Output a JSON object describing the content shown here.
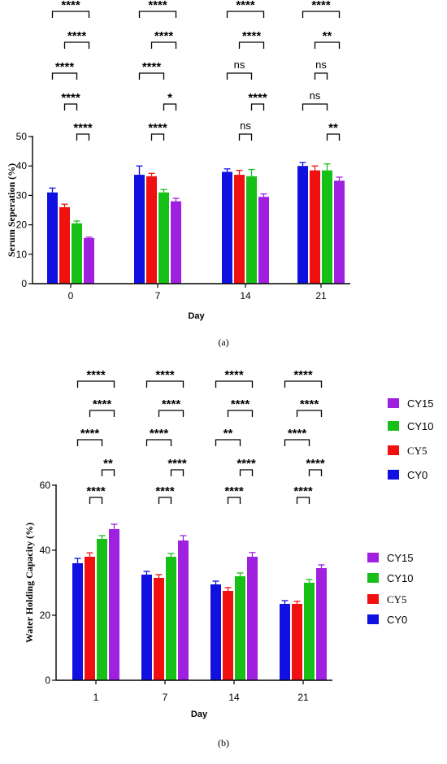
{
  "colors": {
    "CY0": "#1010e0",
    "CY5": "#f01010",
    "CY10": "#16c016",
    "CY15": "#a020e0"
  },
  "legend_order": [
    "CY15",
    "CY10",
    "CY5",
    "CY0"
  ],
  "chart_data": [
    {
      "type": "bar",
      "caption": "(a)",
      "ylabel": "Serum Seperation (%)",
      "xlabel": "Day",
      "ylim": [
        0,
        50
      ],
      "yticks": [
        0,
        10,
        20,
        30,
        40,
        50
      ],
      "grid": false,
      "legend_position": "right",
      "categories": [
        "0",
        "7",
        "14",
        "21"
      ],
      "series": [
        {
          "name": "CY0",
          "values": [
            31,
            37,
            38,
            40
          ],
          "errors": [
            1.5,
            3.0,
            1.0,
            1.2
          ]
        },
        {
          "name": "CY5",
          "values": [
            26,
            36.5,
            37,
            38.5
          ],
          "errors": [
            1.0,
            1.0,
            1.5,
            1.5
          ]
        },
        {
          "name": "CY10",
          "values": [
            20.5,
            31,
            36.5,
            38.5
          ],
          "errors": [
            0.8,
            1.0,
            2.3,
            2.2
          ]
        },
        {
          "name": "CY15",
          "values": [
            15.5,
            28,
            29.5,
            35
          ],
          "errors": [
            0.3,
            1.0,
            1.0,
            1.2
          ]
        }
      ],
      "comparisons": [
        [
          {
            "from": 0,
            "to": 3,
            "label": "****"
          },
          {
            "from": 1,
            "to": 3,
            "label": "****"
          },
          {
            "from": 0,
            "to": 2,
            "label": "****"
          },
          {
            "from": 1,
            "to": 2,
            "label": "****"
          },
          {
            "from": 2,
            "to": 3,
            "label": "****"
          }
        ],
        [
          {
            "from": 0,
            "to": 3,
            "label": "****"
          },
          {
            "from": 1,
            "to": 3,
            "label": "****"
          },
          {
            "from": 0,
            "to": 2,
            "label": "****"
          },
          {
            "from": 2,
            "to": 3,
            "label": "*"
          },
          {
            "from": 1,
            "to": 2,
            "label": "****"
          }
        ],
        [
          {
            "from": 0,
            "to": 3,
            "label": "****"
          },
          {
            "from": 1,
            "to": 3,
            "label": "****"
          },
          {
            "from": 0,
            "to": 2,
            "label": "ns"
          },
          {
            "from": 2,
            "to": 3,
            "label": "****"
          },
          {
            "from": 1,
            "to": 2,
            "label": "ns"
          }
        ],
        [
          {
            "from": 0,
            "to": 3,
            "label": "****"
          },
          {
            "from": 1,
            "to": 3,
            "label": "**"
          },
          {
            "from": 1,
            "to": 2,
            "label": "ns"
          },
          {
            "from": 0,
            "to": 2,
            "label": "ns"
          },
          {
            "from": 2,
            "to": 3,
            "label": "**"
          }
        ]
      ]
    },
    {
      "type": "bar",
      "caption": "(b)",
      "ylabel": "Water Holding Capacity (%)",
      "xlabel": "Day",
      "ylim": [
        0,
        60
      ],
      "yticks": [
        0,
        20,
        40,
        60
      ],
      "grid": false,
      "legend_position": "right",
      "categories": [
        "1",
        "7",
        "14",
        "21"
      ],
      "series": [
        {
          "name": "CY0",
          "values": [
            36,
            32.5,
            29.5,
            23.5
          ],
          "errors": [
            1.5,
            1.0,
            1.0,
            1.0
          ]
        },
        {
          "name": "CY5",
          "values": [
            38,
            31.5,
            27.5,
            23.5
          ],
          "errors": [
            1.2,
            1.0,
            1.0,
            0.8
          ]
        },
        {
          "name": "CY10",
          "values": [
            43.5,
            38,
            32,
            30
          ],
          "errors": [
            1.0,
            1.0,
            1.0,
            1.0
          ]
        },
        {
          "name": "CY15",
          "values": [
            46.5,
            43,
            38,
            34.5
          ],
          "errors": [
            1.5,
            1.5,
            1.3,
            1.0
          ]
        }
      ],
      "comparisons": [
        [
          {
            "from": 0,
            "to": 3,
            "label": "****"
          },
          {
            "from": 1,
            "to": 3,
            "label": "****"
          },
          {
            "from": 0,
            "to": 2,
            "label": "****"
          },
          {
            "from": 2,
            "to": 3,
            "label": "**"
          },
          {
            "from": 1,
            "to": 2,
            "label": "****"
          }
        ],
        [
          {
            "from": 0,
            "to": 3,
            "label": "****"
          },
          {
            "from": 1,
            "to": 3,
            "label": "****"
          },
          {
            "from": 0,
            "to": 2,
            "label": "****"
          },
          {
            "from": 2,
            "to": 3,
            "label": "****"
          },
          {
            "from": 1,
            "to": 2,
            "label": "****"
          }
        ],
        [
          {
            "from": 0,
            "to": 3,
            "label": "****"
          },
          {
            "from": 1,
            "to": 3,
            "label": "****"
          },
          {
            "from": 0,
            "to": 2,
            "label": "**"
          },
          {
            "from": 2,
            "to": 3,
            "label": "****"
          },
          {
            "from": 1,
            "to": 2,
            "label": "****"
          }
        ],
        [
          {
            "from": 0,
            "to": 3,
            "label": "****"
          },
          {
            "from": 1,
            "to": 3,
            "label": "****"
          },
          {
            "from": 0,
            "to": 2,
            "label": "****"
          },
          {
            "from": 2,
            "to": 3,
            "label": "****"
          },
          {
            "from": 1,
            "to": 2,
            "label": "****"
          }
        ]
      ]
    }
  ]
}
